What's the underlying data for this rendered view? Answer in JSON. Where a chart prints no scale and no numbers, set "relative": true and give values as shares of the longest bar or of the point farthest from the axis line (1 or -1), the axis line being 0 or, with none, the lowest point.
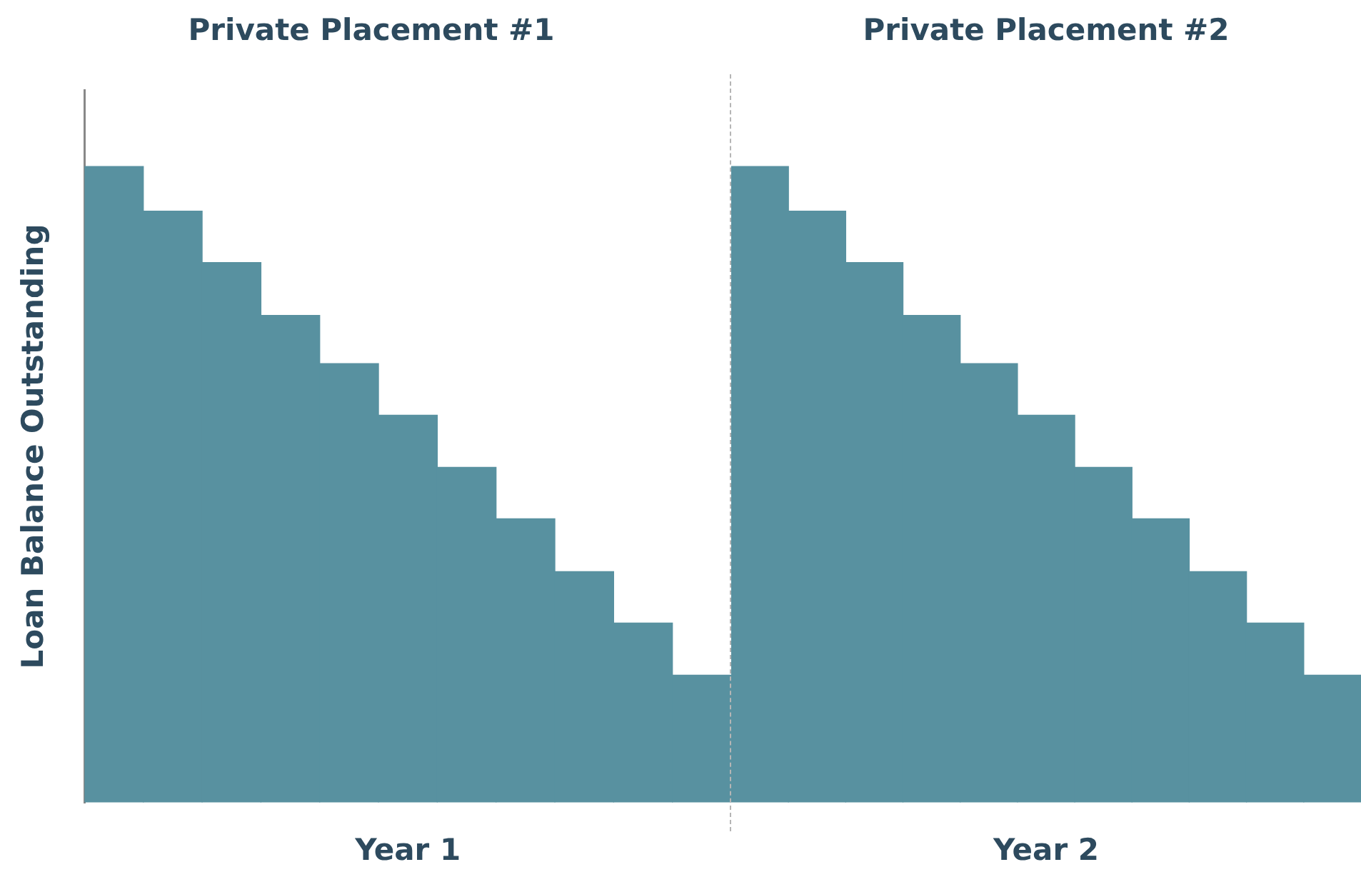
{
  "chart_data": [
    {
      "type": "bar",
      "title": "Private Placement #1",
      "xlabel": "Year 1",
      "ylabel": "Loan Balance Outstanding",
      "relative": true,
      "color": "#5891a0",
      "categories": [
        null,
        null,
        null,
        null,
        null,
        null,
        null,
        null,
        null,
        null,
        null
      ],
      "values": [
        1,
        0.93,
        0.849,
        0.766,
        0.69,
        0.609,
        0.527,
        0.446,
        0.363,
        0.282,
        0.2
      ]
    },
    {
      "type": "bar",
      "title": "Private Placement #2",
      "xlabel": "Year 2",
      "relative": true,
      "color": "#5891a0",
      "categories": [
        null,
        null,
        null,
        null,
        null,
        null,
        null,
        null,
        null,
        null,
        null
      ],
      "values": [
        1,
        0.93,
        0.849,
        0.766,
        0.69,
        0.609,
        0.527,
        0.446,
        0.363,
        0.282,
        0.2
      ]
    }
  ]
}
